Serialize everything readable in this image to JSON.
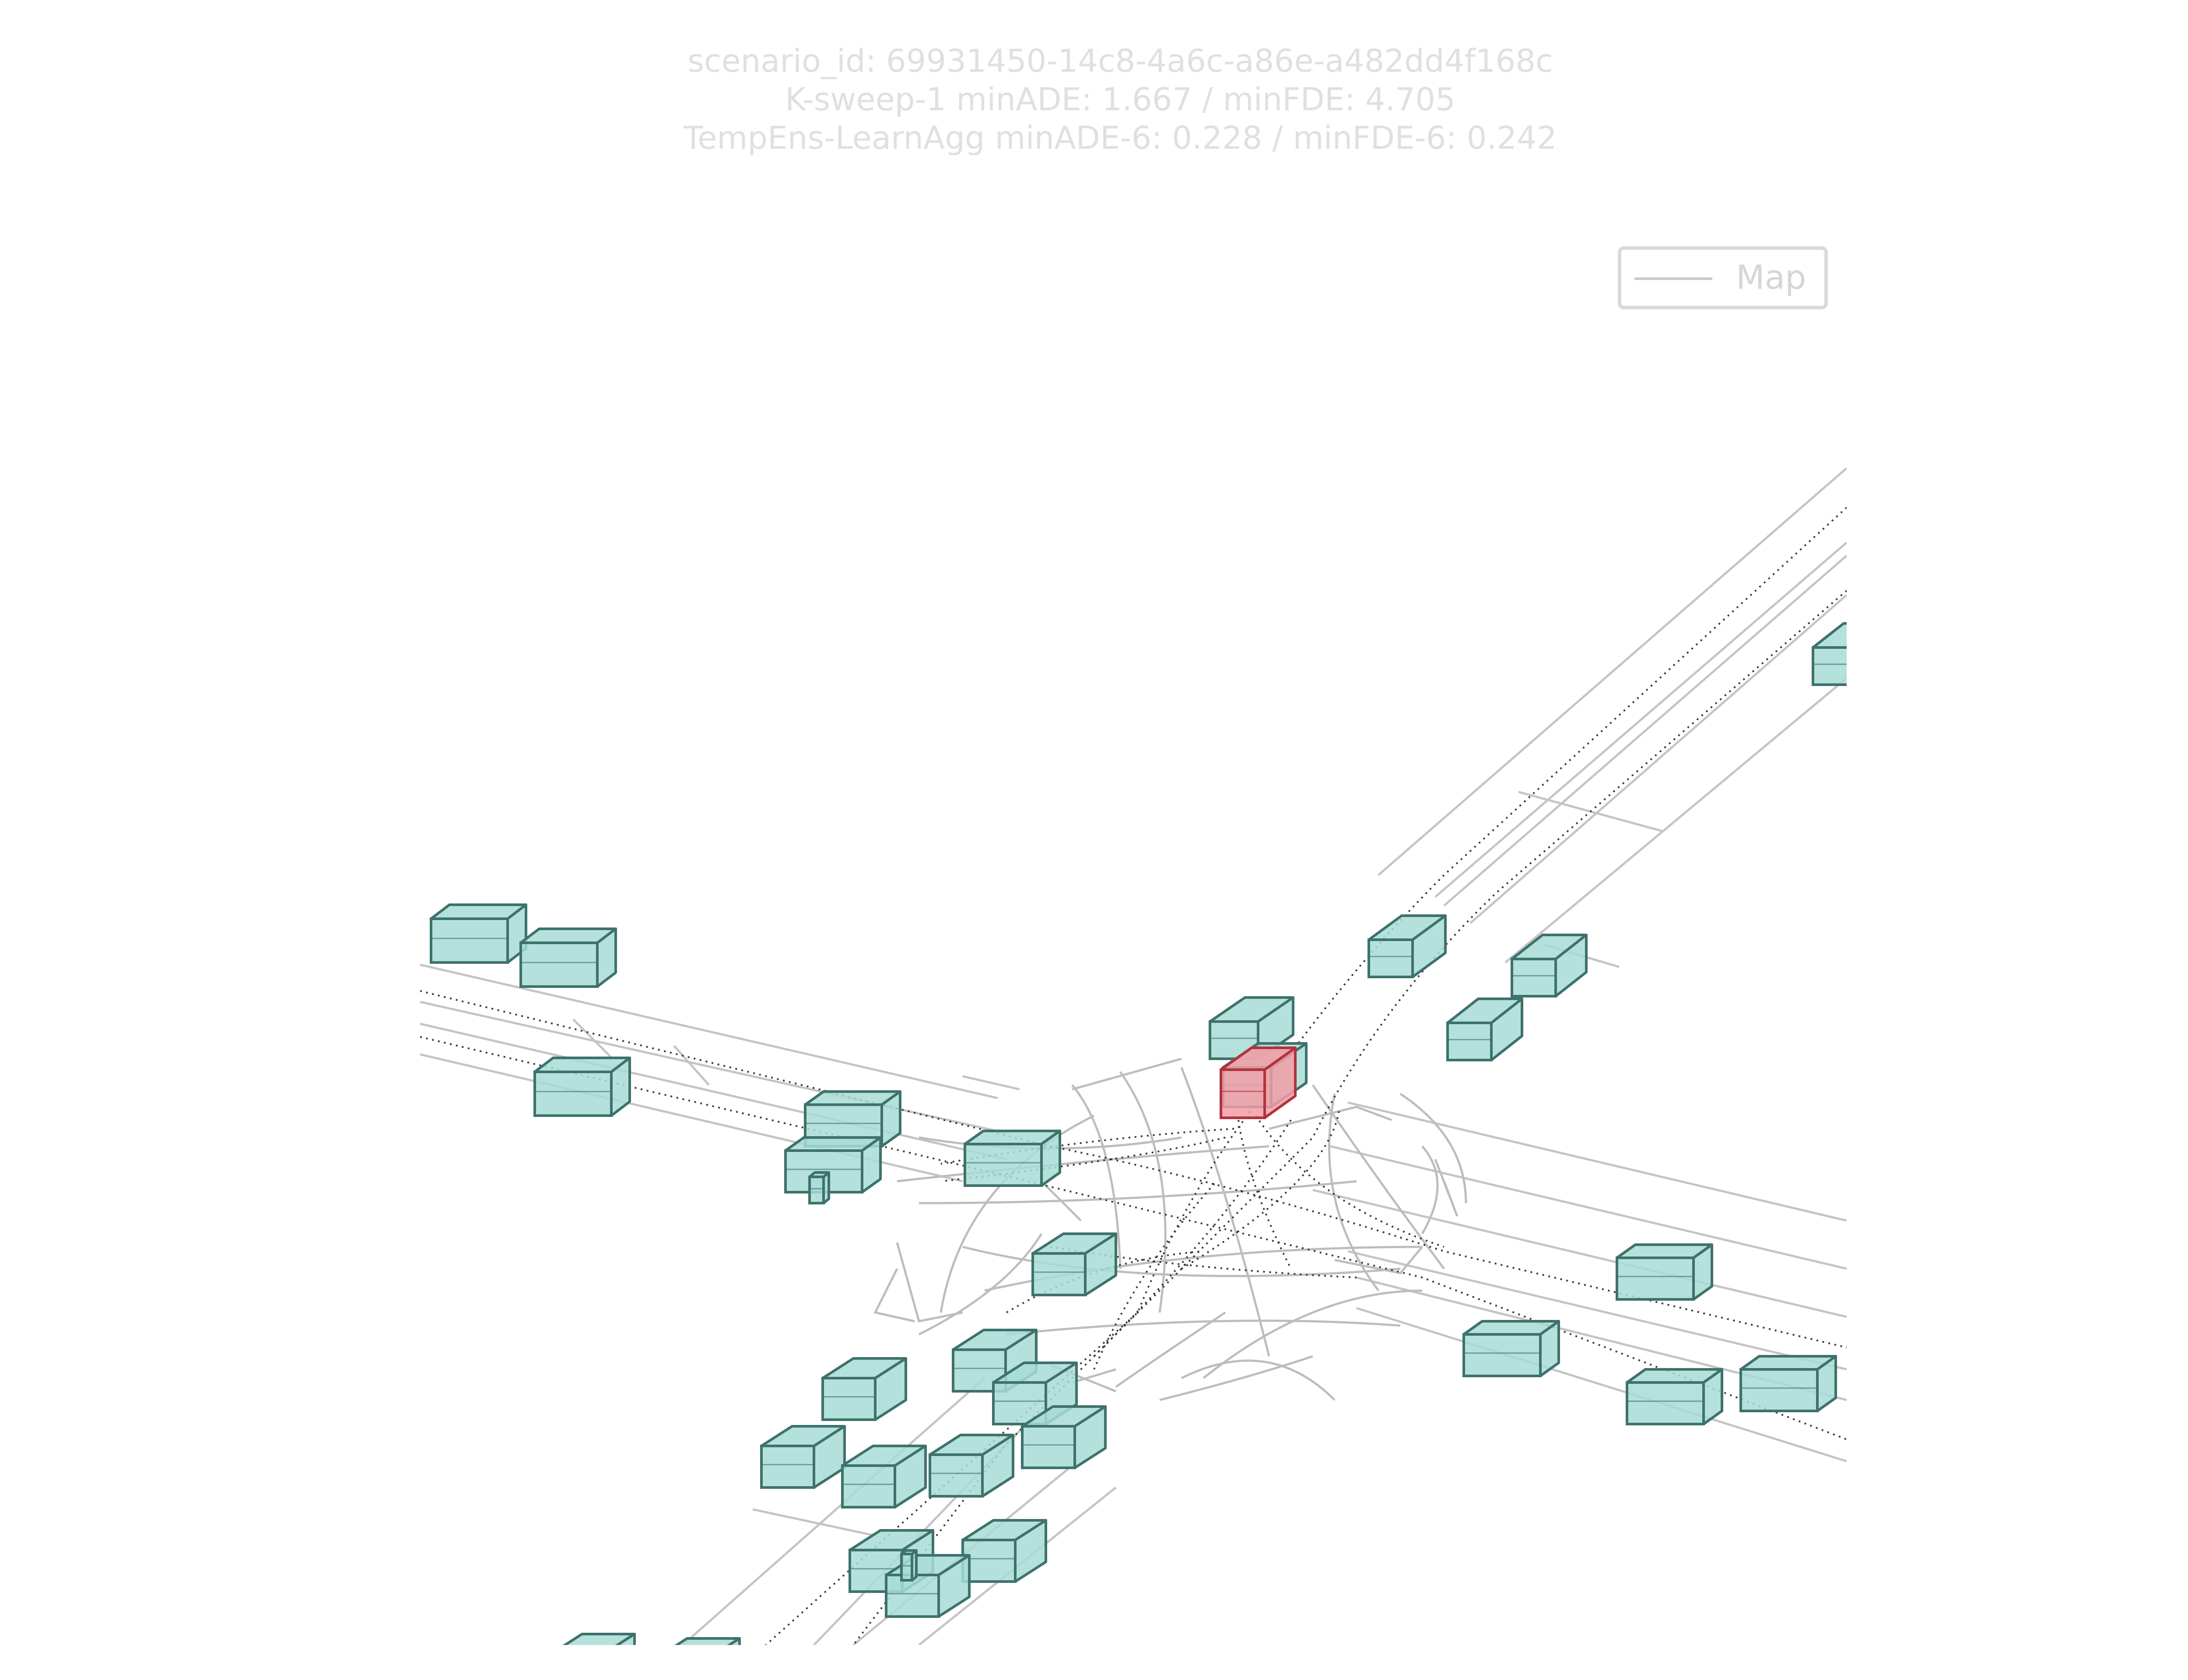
{
  "title": {
    "line1": "scenario_id: 69931450-14c8-4a6c-a86e-a482dd4f168c",
    "line2": "K-sweep-1 minADE: 1.667 / minFDE: 4.705",
    "line3": "TempEns-LearnAgg minADE-6: 0.228 / minFDE-6: 0.242"
  },
  "legend": {
    "map_label": "Map"
  },
  "colors": {
    "agent_fill": "#a8dcd6",
    "agent_edge": "#3e726c",
    "focal_fill": "#f29ca6",
    "focal_edge": "#b2323e",
    "map_line": "#c4c4c4",
    "centerline": "#3a3a3a"
  }
}
